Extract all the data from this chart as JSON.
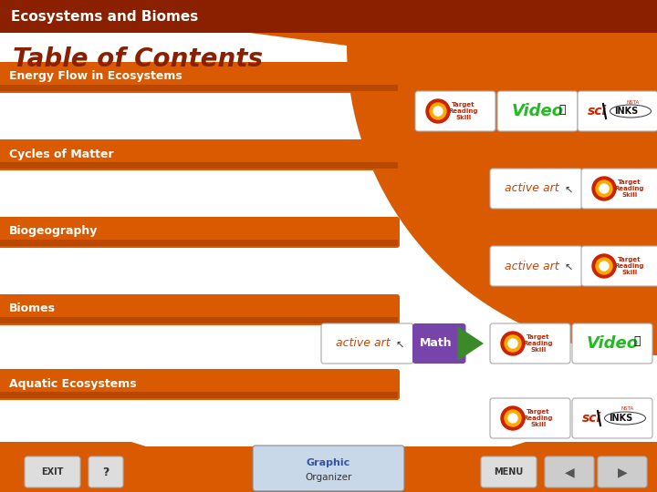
{
  "title_bar_color": "#8B2000",
  "title_bar_text": "Ecosystems and Biomes",
  "title_bar_text_color": "#FFFFFF",
  "background_color": "#FFFFFF",
  "bottom_bar_color": "#C04A00",
  "toc_title": "Table of Contents",
  "toc_title_color": "#8B2000",
  "orange_bar_color": "#D95A00",
  "orange_bar_dark": "#B84800",
  "orange_bg_color": "#D95A00",
  "menu_items": [
    "Energy Flow in Ecosystems",
    "Cycles of Matter",
    "Biogeography",
    "Biomes",
    "Aquatic Ecosystems"
  ],
  "figsize": [
    7.2,
    5.4
  ],
  "dpi": 100
}
